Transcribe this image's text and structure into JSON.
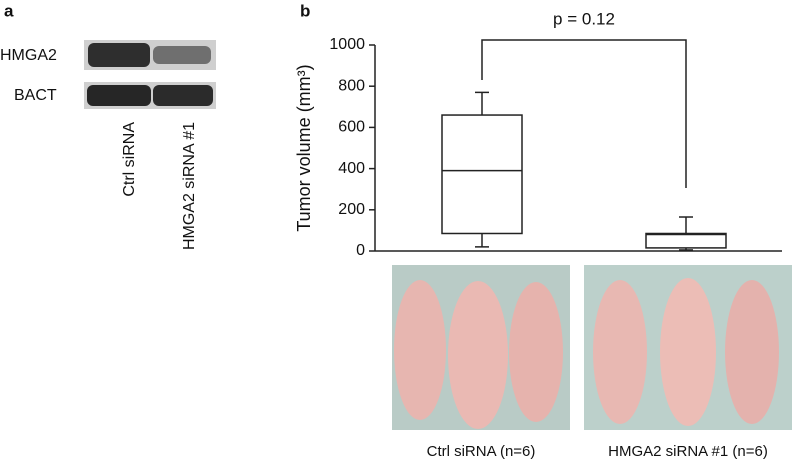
{
  "panel_a": {
    "label": "a",
    "bands": [
      "HMGA2",
      "BACT"
    ],
    "lanes": [
      "Ctrl siRNA",
      "HMGA2 siRNA #1"
    ]
  },
  "panel_b": {
    "label": "b",
    "photo_captions": [
      "Ctrl siRNA (n=6)",
      "HMGA2 siRNA #1 (n=6)"
    ]
  },
  "chart_data": {
    "type": "box",
    "y_label": "Tumor volume (mm³)",
    "annotation": "p = 0.12",
    "categories": [
      null,
      null
    ],
    "boxes": [
      {
        "whislo": 20,
        "q1": 85,
        "med": 390,
        "q3": 660,
        "whishi": 770,
        "color": "#ffffff"
      },
      {
        "whislo": 5,
        "q1": 15,
        "med": 80,
        "q3": 85,
        "whishi": 165,
        "color": "#999999"
      }
    ],
    "ylim": [
      0,
      1000
    ],
    "yticks": [
      0,
      200,
      400,
      600,
      800,
      1000
    ]
  }
}
